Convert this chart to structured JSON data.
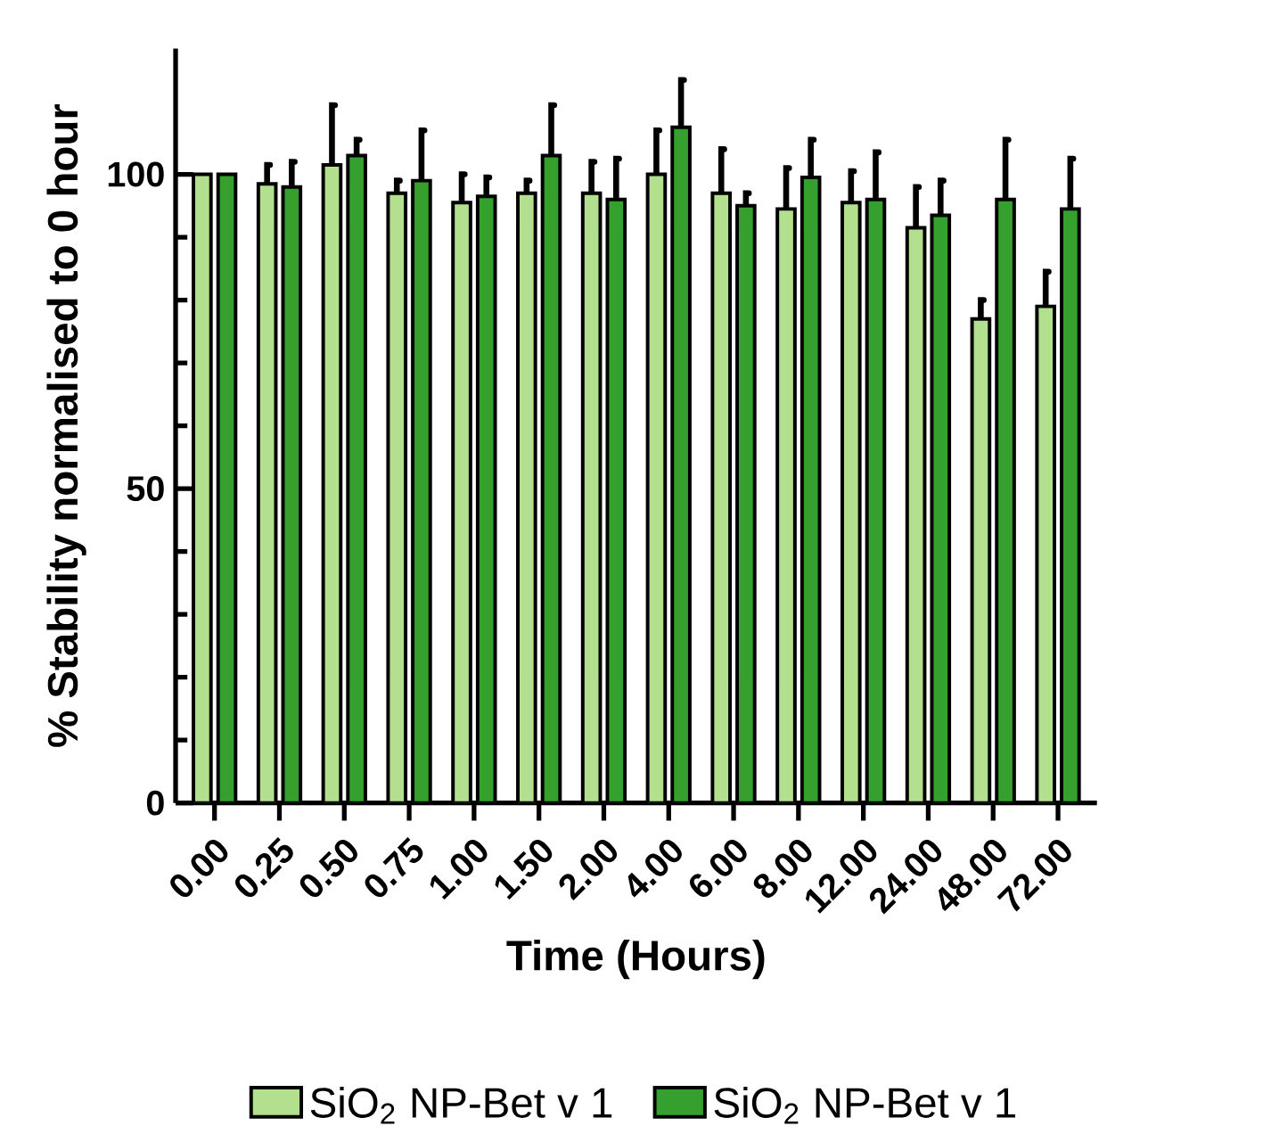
{
  "chart_data": {
    "type": "bar",
    "xlabel": "Time (Hours)",
    "ylabel": "% Stability normalised to 0 hour",
    "categories": [
      "0.00",
      "0.25",
      "0.50",
      "0.75",
      "1.00",
      "1.50",
      "2.00",
      "4.00",
      "6.00",
      "8.00",
      "12.00",
      "24.00",
      "48.00",
      "72.00"
    ],
    "series": [
      {
        "name": "SiO$_{2}$ NP-Bet v 1",
        "color": "#b3e08f",
        "values": [
          100,
          98.5,
          101.5,
          97,
          95.5,
          97,
          97,
          100,
          97,
          94.5,
          95.5,
          91.5,
          77,
          79
        ],
        "errors": [
          null,
          [
            98.5,
            101.5
          ],
          [
            101.5,
            111
          ],
          [
            97,
            99
          ],
          [
            95.5,
            100
          ],
          [
            97,
            99
          ],
          [
            97,
            102
          ],
          [
            100,
            107
          ],
          [
            97,
            104
          ],
          [
            94.5,
            101
          ],
          [
            95.5,
            100.5
          ],
          [
            91.5,
            98
          ],
          [
            77,
            80
          ],
          [
            79,
            84.5
          ]
        ]
      },
      {
        "name": "SiO$_{2}$ NP-Bet v 1",
        "color": "#35a02d",
        "values": [
          100,
          98,
          103,
          99,
          96.5,
          103,
          96,
          107.5,
          95,
          99.5,
          96,
          93.5,
          96,
          94.5
        ],
        "errors": [
          null,
          [
            98,
            102
          ],
          [
            103,
            105.5
          ],
          [
            99,
            107
          ],
          [
            96.5,
            99.5
          ],
          [
            103,
            111
          ],
          [
            96,
            102.5
          ],
          [
            107.5,
            115
          ],
          [
            95,
            97
          ],
          [
            99.5,
            105.5
          ],
          [
            96,
            103.5
          ],
          [
            93.5,
            99
          ],
          [
            96,
            105.5
          ],
          [
            94.5,
            102.5
          ]
        ]
      }
    ],
    "ylim": [
      0,
      120
    ],
    "yticks": [
      0,
      50,
      100
    ],
    "grid": false,
    "legend": "bottom"
  }
}
